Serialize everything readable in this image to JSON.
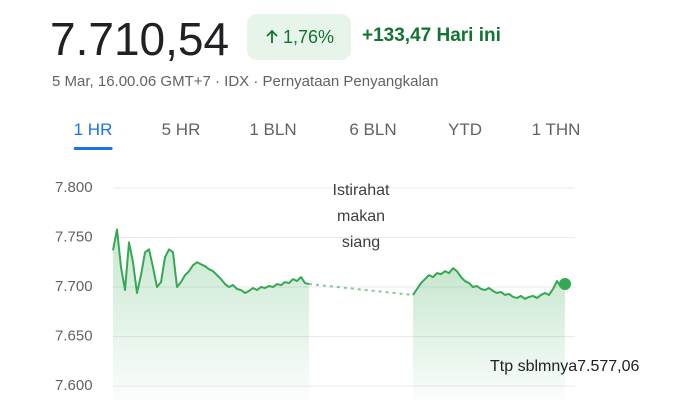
{
  "header": {
    "price": "7.710,54",
    "change_percent": "1,76%",
    "change_value": "+133,47",
    "period": "Hari ini",
    "meta": "5 Mar, 16.00.06 GMT+7 · IDX · Pernyataan Penyangkalan"
  },
  "tabs": [
    "1 HR",
    "5 HR",
    "1 BLN",
    "6 BLN",
    "YTD",
    "1 THN"
  ],
  "selected_tab": 0,
  "chart_data": {
    "type": "line",
    "color": "#34a853",
    "annotation": "Istirahat makan siang",
    "previous_close": {
      "label": "Ttp sblmnya",
      "value": 7577.06,
      "value_label": "7.577,06"
    },
    "ylim": [
      7586,
      7810
    ],
    "yticks": [
      {
        "value": 7600,
        "label": "7.600"
      },
      {
        "value": 7650,
        "label": "7.650"
      },
      {
        "value": 7700,
        "label": "7.700"
      },
      {
        "value": 7750,
        "label": "7.750"
      },
      {
        "value": 7800,
        "label": "7.800"
      }
    ],
    "grid": true,
    "values": [
      7737,
      7758,
      7720,
      7697,
      7745,
      7725,
      7694,
      7712,
      7735,
      7738,
      7720,
      7700,
      7705,
      7730,
      7738,
      7735,
      7700,
      7705,
      7712,
      7716,
      7722,
      7725,
      7723,
      7721,
      7718,
      7716,
      7712,
      7708,
      7703,
      7700,
      7702,
      7698,
      7697,
      7694,
      7696,
      7699,
      7697,
      7700,
      7699,
      7701,
      7700,
      7703,
      7702,
      7705,
      7704,
      7708,
      7706,
      7710,
      7704,
      7703,
      null,
      null,
      null,
      null,
      null,
      null,
      null,
      null,
      null,
      null,
      null,
      null,
      null,
      null,
      null,
      null,
      null,
      null,
      null,
      null,
      null,
      null,
      null,
      null,
      null,
      7692,
      7698,
      7704,
      7708,
      7712,
      7710,
      7714,
      7713,
      7716,
      7714,
      7719,
      7716,
      7710,
      7706,
      7704,
      7700,
      7701,
      7698,
      7697,
      7699,
      7696,
      7694,
      7695,
      7692,
      7693,
      7690,
      7689,
      7691,
      7688,
      7690,
      7691,
      7689,
      7692,
      7694,
      7692,
      7698,
      7706,
      7700,
      7703
    ]
  }
}
